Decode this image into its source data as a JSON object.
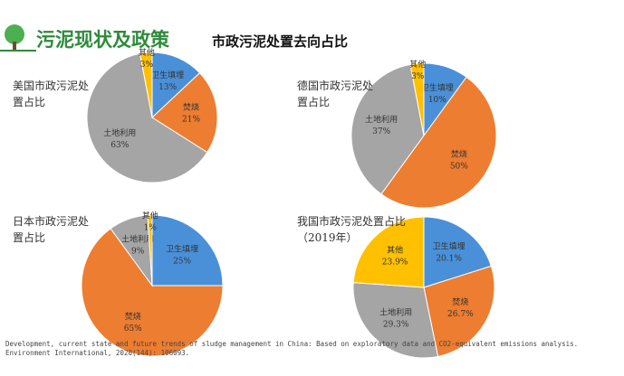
{
  "header": {
    "title": "污泥现状及政策",
    "subtitle": "市政污泥处置去向占比"
  },
  "chart_data": [
    {
      "type": "pie",
      "title": "美国市政污泥处置占比",
      "categories": [
        "卫生填埋",
        "焚烧",
        "土地利用",
        "其他"
      ],
      "values": [
        13,
        21,
        63,
        3
      ],
      "value_labels": [
        "13%",
        "21%",
        "63%",
        "3%"
      ],
      "colors": [
        "#4a90d9",
        "#ed7d31",
        "#a5a5a5",
        "#ffc000"
      ]
    },
    {
      "type": "pie",
      "title": "德国市政污泥处置占比",
      "categories": [
        "卫生填埋",
        "焚烧",
        "土地利用",
        "其他"
      ],
      "values": [
        10,
        50,
        37,
        3
      ],
      "value_labels": [
        "10%",
        "50%",
        "37%",
        "3%"
      ],
      "colors": [
        "#4a90d9",
        "#ed7d31",
        "#a5a5a5",
        "#ffc000"
      ]
    },
    {
      "type": "pie",
      "title": "日本市政污泥处置占比",
      "categories": [
        "卫生填埋",
        "焚烧",
        "土地利用",
        "其他"
      ],
      "values": [
        25,
        65,
        9,
        1
      ],
      "value_labels": [
        "25%",
        "65%",
        "9%",
        "1%"
      ],
      "colors": [
        "#4a90d9",
        "#ed7d31",
        "#a5a5a5",
        "#ffc000"
      ]
    },
    {
      "type": "pie",
      "title": "我国市政污泥处置占比（2019年）",
      "categories": [
        "卫生填埋",
        "焚烧",
        "土地利用",
        "其他"
      ],
      "values": [
        20.1,
        26.7,
        29.3,
        23.9
      ],
      "value_labels": [
        "20.1%",
        "26.7%",
        "29.3%",
        "23.9%"
      ],
      "colors": [
        "#4a90d9",
        "#ed7d31",
        "#a5a5a5",
        "#ffc000"
      ]
    }
  ],
  "footer": {
    "citation": "Development, current state and future trends of sludge management in China: Based on exploratory data and CO2-equivalent emissions analysis. Environment International, 2020(144): 106093."
  }
}
